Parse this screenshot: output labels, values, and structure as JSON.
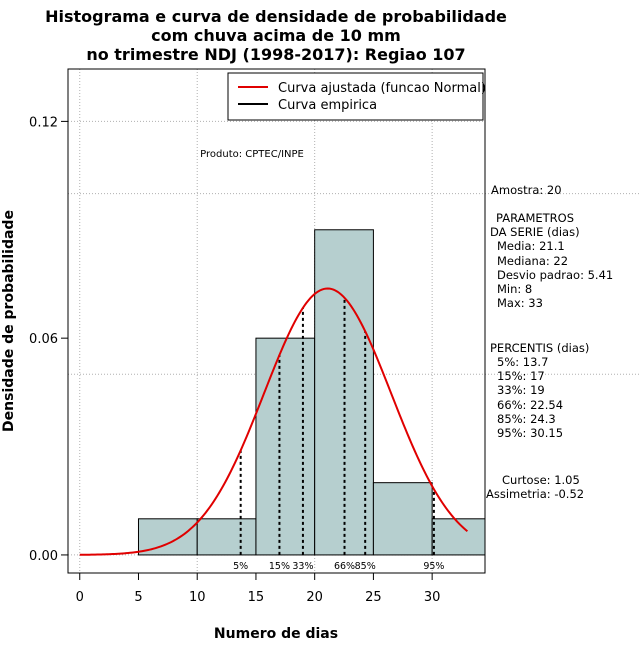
{
  "chart_data": {
    "type": "bar",
    "title_lines": [
      "Histograma e curva de densidade de probabilidade",
      "com chuva acima de 10 mm",
      "no trimestre NDJ (1998-2017): Regiao 107"
    ],
    "xlabel": "Numero de dias",
    "ylabel": "Densidade de probabilidade",
    "xlim": [
      -1,
      34.5
    ],
    "ylim": [
      -0.005,
      0.1345
    ],
    "x_ticks": [
      0,
      5,
      10,
      15,
      20,
      25,
      30
    ],
    "x_tick_labels": [
      "0",
      "5",
      "10",
      "15",
      "20",
      "25",
      "30"
    ],
    "y_ticks": [
      0.0,
      0.06,
      0.12
    ],
    "y_tick_labels": [
      "0.00",
      "0.06",
      "0.12"
    ],
    "grid_x": [
      0,
      10,
      20,
      30
    ],
    "grid_y": [
      0.0,
      0.12
    ],
    "grid_y_outer": [
      0.1,
      0.05
    ],
    "bins": [
      {
        "x0": 5,
        "x1": 10,
        "density": 0.01
      },
      {
        "x0": 10,
        "x1": 15,
        "density": 0.01
      },
      {
        "x0": 15,
        "x1": 20,
        "density": 0.06
      },
      {
        "x0": 20,
        "x1": 25,
        "density": 0.09
      },
      {
        "x0": 25,
        "x1": 30,
        "density": 0.02
      },
      {
        "x0": 30,
        "x1": 35,
        "density": 0.01
      }
    ],
    "bar_color": "#b6cfcf",
    "curve_color": "#e00000",
    "normal_fit": {
      "mean": 21.1,
      "sd": 5.41,
      "x_range": [
        0,
        33
      ]
    },
    "percentile_lines": [
      {
        "label": "5%",
        "x": 13.7
      },
      {
        "label": "15%",
        "x": 17
      },
      {
        "label": "33%",
        "x": 19
      },
      {
        "label": "66%",
        "x": 22.54
      },
      {
        "label": "85%",
        "x": 24.3
      },
      {
        "label": "95%",
        "x": 30.15
      }
    ],
    "legend": {
      "position": "top-right",
      "entries": [
        {
          "label": "Curva ajustada (funcao Normal)",
          "color": "#e00000"
        },
        {
          "label": "Curva empirica",
          "color": "#000000"
        }
      ]
    },
    "annotation": "Produto: CPTEC/INPE"
  },
  "side_panel": {
    "amostra": "Amostra: 20",
    "params_header_1": "PARAMETROS",
    "params_header_2": "DA SERIE (dias)",
    "media": "Media: 21.1",
    "mediana": "Mediana: 22",
    "desvio": "Desvio padrao: 5.41",
    "min": "Min: 8",
    "max": "Max: 33",
    "pct_header": "PERCENTIS (dias)",
    "p5": "5%: 13.7",
    "p15": "15%: 17",
    "p33": "33%: 19",
    "p66": "66%: 22.54",
    "p85": "85%: 24.3",
    "p95": "95%: 30.15",
    "curtose": "Curtose: 1.05",
    "assimetria": "Assimetria: -0.52"
  }
}
